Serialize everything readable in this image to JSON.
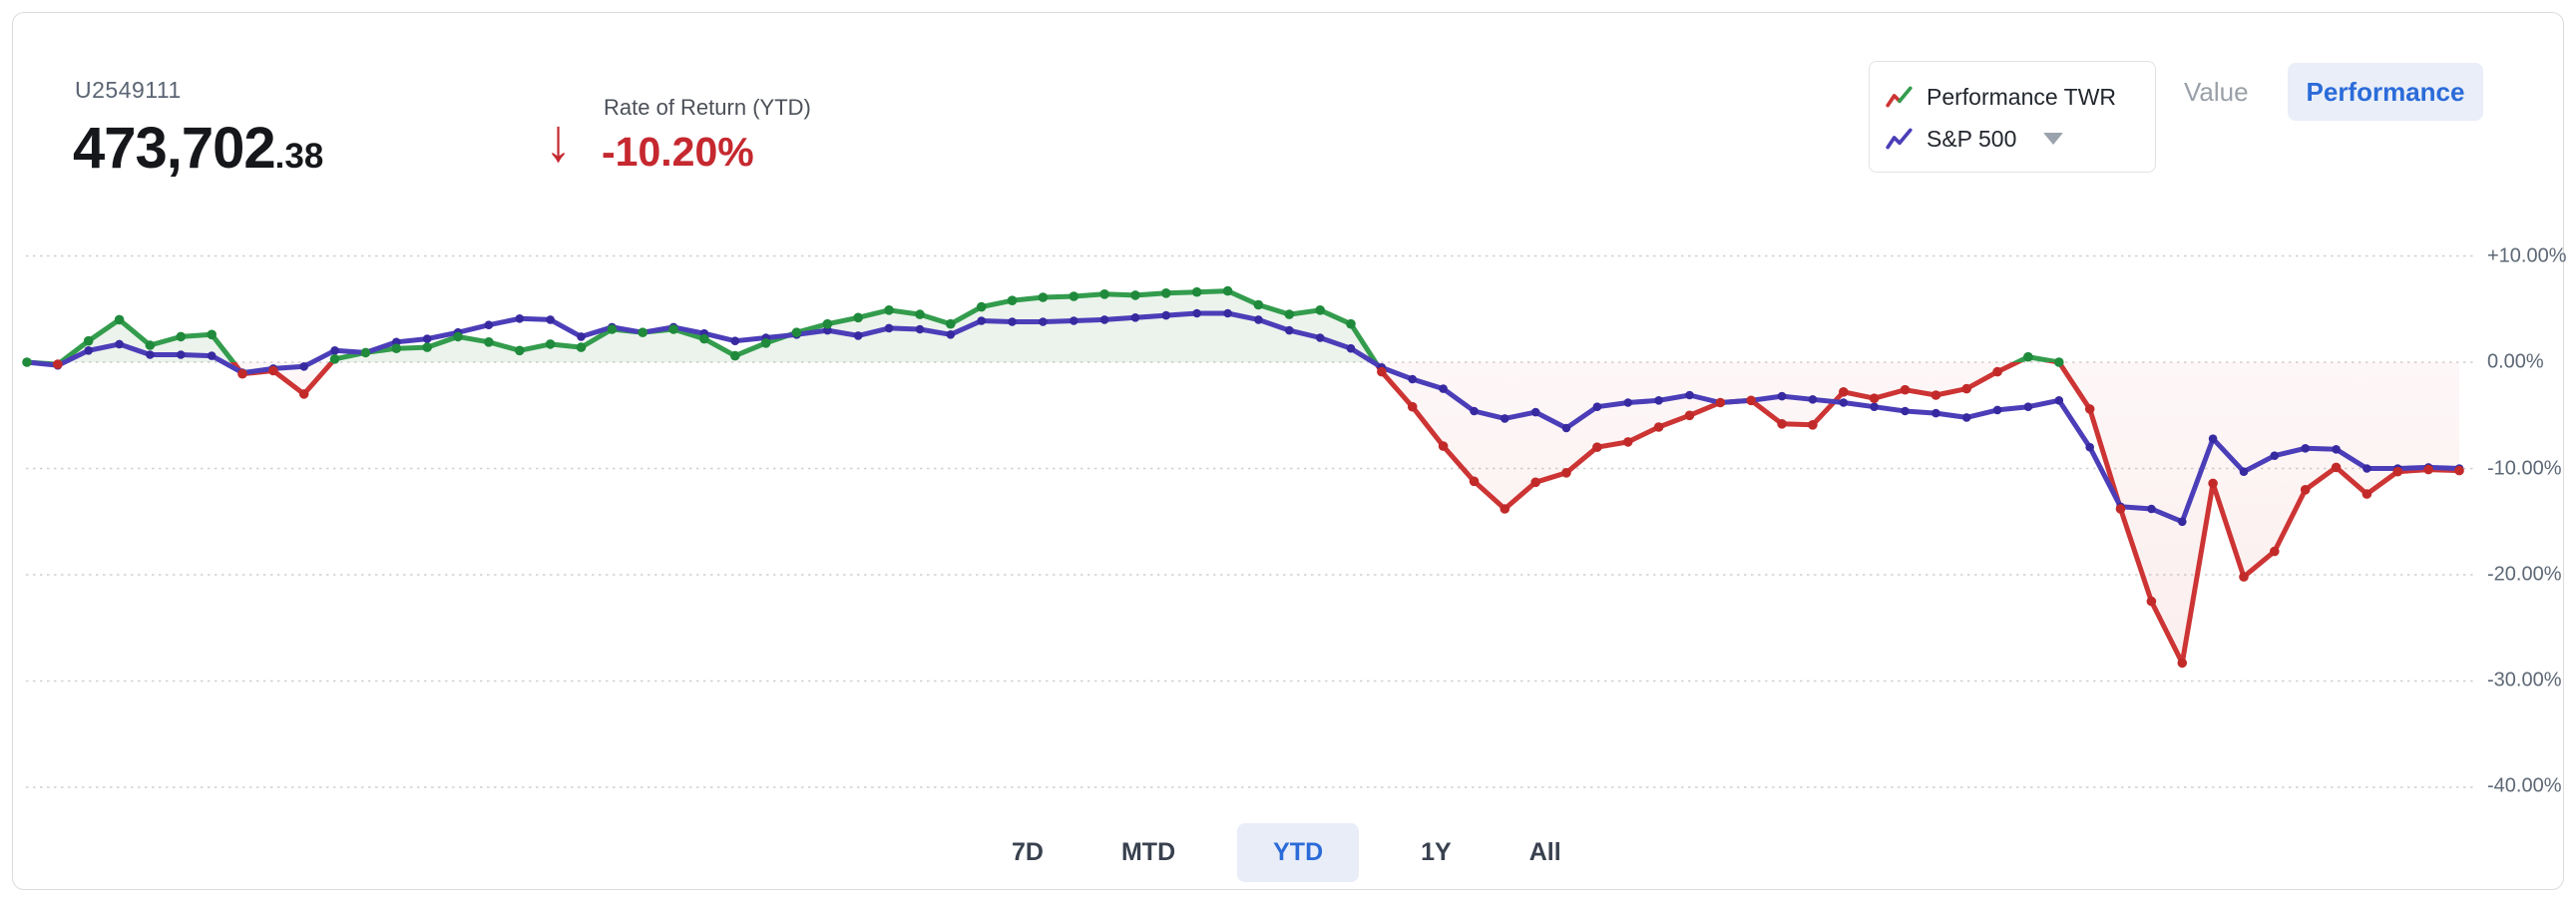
{
  "header": {
    "account_id": "U2549111",
    "value_main": "473,702",
    "value_decimals": ".38",
    "arrow_down_glyph": "↓",
    "ror_label": "Rate of Return (YTD)",
    "ror_value": "-10.20%"
  },
  "legend": {
    "items": [
      {
        "label": "Performance TWR",
        "icon": "twr-zigzag-line-icon",
        "colors": [
          "#cd3434",
          "#339c4d"
        ]
      },
      {
        "label": "S&P 500",
        "icon": "sp500-zigzag-line-icon",
        "color": "#4b3eb8",
        "has_dropdown": true
      }
    ]
  },
  "view_toggle": {
    "options": [
      {
        "label": "Value",
        "active": false
      },
      {
        "label": "Performance",
        "active": true
      }
    ]
  },
  "range_tabs": {
    "items": [
      {
        "label": "7D",
        "active": false
      },
      {
        "label": "MTD",
        "active": false
      },
      {
        "label": "YTD",
        "active": true
      },
      {
        "label": "1Y",
        "active": false
      },
      {
        "label": "All",
        "active": false
      }
    ]
  },
  "chart_data": {
    "type": "line",
    "title": "",
    "xlabel": "",
    "ylabel": "",
    "x_axis": {
      "labels_visible": false,
      "description": "trading-session index (YTD)"
    },
    "ylim": [
      -40,
      10
    ],
    "grid": true,
    "legend_position": "top-right",
    "y_ticks": [
      {
        "label": "+10.00%",
        "value": 10
      },
      {
        "label": "0.00%",
        "value": 0
      },
      {
        "label": "-10.00%",
        "value": -10
      },
      {
        "label": "-20.00%",
        "value": -20
      },
      {
        "label": "-30.00%",
        "value": -30
      },
      {
        "label": "-40.00%",
        "value": -40
      }
    ],
    "colors": {
      "twr_positive": "#339c4d",
      "twr_negative": "#cd3434",
      "twr_marker_positive": "#1f8a3b",
      "twr_marker_negative": "#c22a2a",
      "sp500": "#4b3eb8",
      "sp500_marker": "#372aa0",
      "fill_positive": "rgba(88,158,98,0.12)",
      "fill_negative": "rgba(225,100,100,0.10)",
      "gridline": "#d0d0d0"
    },
    "series": [
      {
        "name": "Performance TWR",
        "unit": "%",
        "values": [
          0.0,
          -0.2,
          2.0,
          4.0,
          1.6,
          2.4,
          2.6,
          -1.1,
          -0.8,
          -3.0,
          0.3,
          0.9,
          1.3,
          1.4,
          2.4,
          1.9,
          1.1,
          1.7,
          1.4,
          3.1,
          2.8,
          3.1,
          2.2,
          0.6,
          1.8,
          2.8,
          3.6,
          4.2,
          4.9,
          4.5,
          3.6,
          5.2,
          5.8,
          6.1,
          6.2,
          6.4,
          6.3,
          6.5,
          6.6,
          6.7,
          5.4,
          4.5,
          4.9,
          3.6,
          -0.9,
          -4.2,
          -7.9,
          -11.2,
          -13.8,
          -11.3,
          -10.4,
          -8.0,
          -7.5,
          -6.1,
          -5.0,
          -3.8,
          -3.6,
          -5.8,
          -5.9,
          -2.8,
          -3.4,
          -2.6,
          -3.1,
          -2.5,
          -0.9,
          0.5,
          0.0,
          -4.4,
          -13.8,
          -22.5,
          -28.3,
          -11.4,
          -20.2,
          -17.8,
          -12.0,
          -9.9,
          -12.4,
          -10.3,
          -10.1,
          -10.2
        ]
      },
      {
        "name": "S&P 500",
        "unit": "%",
        "values": [
          0.0,
          -0.3,
          1.1,
          1.7,
          0.7,
          0.7,
          0.6,
          -1.0,
          -0.6,
          -0.4,
          1.1,
          0.9,
          1.9,
          2.2,
          2.8,
          3.5,
          4.1,
          4.0,
          2.4,
          3.3,
          2.8,
          3.3,
          2.7,
          2.0,
          2.3,
          2.6,
          3.0,
          2.5,
          3.2,
          3.1,
          2.6,
          3.9,
          3.8,
          3.8,
          3.9,
          4.0,
          4.2,
          4.4,
          4.6,
          4.6,
          4.0,
          3.0,
          2.3,
          1.3,
          -0.5,
          -1.6,
          -2.5,
          -4.6,
          -5.3,
          -4.7,
          -6.2,
          -4.2,
          -3.8,
          -3.6,
          -3.1,
          -3.8,
          -3.6,
          -3.2,
          -3.5,
          -3.8,
          -4.2,
          -4.6,
          -4.8,
          -5.2,
          -4.5,
          -4.2,
          -3.6,
          -8.0,
          -13.6,
          -13.8,
          -15.0,
          -7.2,
          -10.3,
          -8.8,
          -8.1,
          -8.2,
          -10.0,
          -10.0,
          -9.9,
          -10.0
        ]
      }
    ]
  }
}
